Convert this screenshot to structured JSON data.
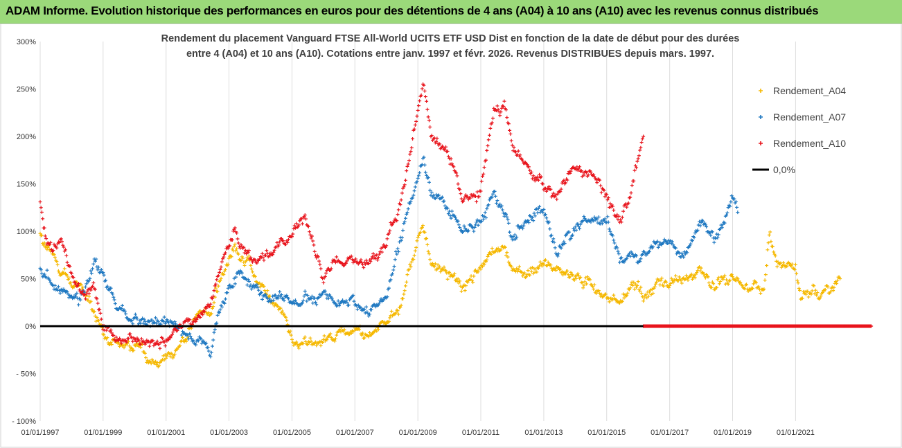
{
  "banner": {
    "title": "ADAM Informe. Evolution historique des performances en euros pour des détentions de 4 ans (A04) à 10 ans (A10) avec les revenus connus distribués",
    "background": "#9bd97a"
  },
  "chart_data": {
    "type": "scatter",
    "title_lines": [
      "Rendement du placement Vanguard FTSE All-World UCITS ETF USD Dist en fonction de la date de début pour des durées",
      "entre 4 (A04) et 10 ans (A10). Cotations entre janv. 1997 et févr.  2026. Revenus DISTRIBUES depuis mars. 1997."
    ],
    "x_axis": {
      "type": "date",
      "range": [
        "1997-01-01",
        "2023-06-01"
      ],
      "tick_labels": [
        "01/01/1997",
        "01/01/1999",
        "01/01/2001",
        "01/01/2003",
        "01/01/2005",
        "01/01/2007",
        "01/01/2009",
        "01/01/2011",
        "01/01/2013",
        "01/01/2015",
        "01/01/2017",
        "01/01/2019",
        "01/01/2021"
      ]
    },
    "y_axis": {
      "range": [
        -100,
        300
      ],
      "ticks": [
        -100,
        -50,
        0,
        50,
        100,
        150,
        200,
        250,
        300
      ],
      "tick_labels": [
        "- 100%",
        "- 50%",
        "0%",
        "50%",
        "100%",
        "150%",
        "200%",
        "250%",
        "300%"
      ]
    },
    "grid": "vertical lines only",
    "legend": {
      "placement": "right",
      "items": [
        {
          "label": "Rendement_A04",
          "marker": "+",
          "color": "#f5b800"
        },
        {
          "label": "Rendement_A07",
          "marker": "+",
          "color": "#1f78c1"
        },
        {
          "label": "Rendement_A10",
          "marker": "+",
          "color": "#e8141c"
        },
        {
          "label": "0,0%",
          "marker": "line",
          "color": "#000000"
        }
      ]
    },
    "series": [
      {
        "name": "Rendement_A04",
        "color": "#f5b800",
        "points": [
          [
            "1997-01-01",
            100
          ],
          [
            "1997-03-01",
            80
          ],
          [
            "1997-06-01",
            70
          ],
          [
            "1997-09-01",
            60
          ],
          [
            "1998-01-01",
            45
          ],
          [
            "1998-05-01",
            40
          ],
          [
            "1998-09-01",
            15
          ],
          [
            "1998-11-01",
            5
          ],
          [
            "1999-03-01",
            -20
          ],
          [
            "1999-09-01",
            -25
          ],
          [
            "2000-03-01",
            -25
          ],
          [
            "2000-09-01",
            -32
          ],
          [
            "2001-03-01",
            -28
          ],
          [
            "2001-09-01",
            -10
          ],
          [
            "2002-01-01",
            10
          ],
          [
            "2002-06-01",
            15
          ],
          [
            "2002-10-01",
            50
          ],
          [
            "2003-03-01",
            90
          ],
          [
            "2003-07-01",
            70
          ],
          [
            "2004-01-01",
            40
          ],
          [
            "2004-06-01",
            25
          ],
          [
            "2004-10-01",
            10
          ],
          [
            "2005-01-01",
            -15
          ],
          [
            "2005-06-01",
            -20
          ],
          [
            "2006-01-01",
            -15
          ],
          [
            "2006-06-01",
            -5
          ],
          [
            "2007-01-01",
            -10
          ],
          [
            "2007-06-01",
            -15
          ],
          [
            "2008-01-01",
            5
          ],
          [
            "2008-06-01",
            20
          ],
          [
            "2008-10-01",
            60
          ],
          [
            "2009-01-01",
            90
          ],
          [
            "2009-03-01",
            110
          ],
          [
            "2009-06-01",
            70
          ],
          [
            "2010-01-01",
            55
          ],
          [
            "2010-06-01",
            40
          ],
          [
            "2011-01-01",
            60
          ],
          [
            "2011-06-01",
            80
          ],
          [
            "2011-10-01",
            85
          ],
          [
            "2012-01-01",
            60
          ],
          [
            "2012-06-01",
            55
          ],
          [
            "2013-01-01",
            65
          ],
          [
            "2013-06-01",
            60
          ],
          [
            "2014-01-01",
            55
          ],
          [
            "2014-06-01",
            50
          ],
          [
            "2015-01-01",
            30
          ],
          [
            "2015-06-01",
            25
          ],
          [
            "2016-01-01",
            50
          ],
          [
            "2016-03-01",
            35
          ],
          [
            "2016-06-01",
            40
          ],
          [
            "2017-01-01",
            40
          ],
          [
            "2017-06-01",
            50
          ],
          [
            "2018-01-01",
            60
          ],
          [
            "2018-06-01",
            45
          ],
          [
            "2019-01-01",
            50
          ],
          [
            "2019-06-01",
            40
          ],
          [
            "2020-01-01",
            40
          ],
          [
            "2020-03-01",
            100
          ],
          [
            "2020-06-01",
            70
          ],
          [
            "2021-01-01",
            65
          ],
          [
            "2021-03-01",
            30
          ],
          [
            "2021-06-01",
            40
          ],
          [
            "2022-01-01",
            40
          ],
          [
            "2022-06-01",
            50
          ]
        ]
      },
      {
        "name": "Rendement_A07",
        "color": "#1f78c1",
        "points": [
          [
            "1997-01-01",
            55
          ],
          [
            "1997-06-01",
            40
          ],
          [
            "1998-01-01",
            30
          ],
          [
            "1998-06-01",
            35
          ],
          [
            "1998-10-01",
            70
          ],
          [
            "1999-01-01",
            50
          ],
          [
            "1999-06-01",
            20
          ],
          [
            "2000-01-01",
            5
          ],
          [
            "2000-06-01",
            0
          ],
          [
            "2001-01-01",
            5
          ],
          [
            "2001-06-01",
            0
          ],
          [
            "2002-01-01",
            -15
          ],
          [
            "2002-06-01",
            -30
          ],
          [
            "2002-09-01",
            10
          ],
          [
            "2003-01-01",
            40
          ],
          [
            "2003-06-01",
            60
          ],
          [
            "2004-01-01",
            40
          ],
          [
            "2004-06-01",
            30
          ],
          [
            "2005-01-01",
            25
          ],
          [
            "2005-06-01",
            30
          ],
          [
            "2006-01-01",
            35
          ],
          [
            "2006-06-01",
            20
          ],
          [
            "2007-01-01",
            20
          ],
          [
            "2007-06-01",
            15
          ],
          [
            "2008-01-01",
            35
          ],
          [
            "2008-06-01",
            80
          ],
          [
            "2008-10-01",
            130
          ],
          [
            "2009-01-01",
            160
          ],
          [
            "2009-03-01",
            180
          ],
          [
            "2009-06-01",
            140
          ],
          [
            "2010-01-01",
            120
          ],
          [
            "2010-06-01",
            100
          ],
          [
            "2011-01-01",
            110
          ],
          [
            "2011-06-01",
            145
          ],
          [
            "2011-10-01",
            120
          ],
          [
            "2012-01-01",
            100
          ],
          [
            "2012-06-01",
            115
          ],
          [
            "2013-01-01",
            120
          ],
          [
            "2013-06-01",
            80
          ],
          [
            "2014-01-01",
            100
          ],
          [
            "2014-06-01",
            120
          ],
          [
            "2015-01-01",
            110
          ],
          [
            "2015-06-01",
            80
          ],
          [
            "2016-01-01",
            70
          ],
          [
            "2016-06-01",
            90
          ],
          [
            "2017-01-01",
            85
          ],
          [
            "2017-06-01",
            80
          ],
          [
            "2018-01-01",
            110
          ],
          [
            "2018-06-01",
            90
          ],
          [
            "2018-10-01",
            110
          ],
          [
            "2019-01-01",
            140
          ],
          [
            "2019-03-01",
            120
          ]
        ]
      },
      {
        "name": "Rendement_A10",
        "color": "#e8141c",
        "points": [
          [
            "1997-01-01",
            130
          ],
          [
            "1997-03-01",
            90
          ],
          [
            "1997-06-01",
            80
          ],
          [
            "1997-09-01",
            90
          ],
          [
            "1998-01-01",
            50
          ],
          [
            "1998-06-01",
            30
          ],
          [
            "1998-10-01",
            40
          ],
          [
            "1999-01-01",
            0
          ],
          [
            "1999-06-01",
            -15
          ],
          [
            "2000-01-01",
            -10
          ],
          [
            "2000-06-01",
            -15
          ],
          [
            "2001-01-01",
            -15
          ],
          [
            "2001-06-01",
            0
          ],
          [
            "2002-01-01",
            10
          ],
          [
            "2002-06-01",
            20
          ],
          [
            "2002-10-01",
            70
          ],
          [
            "2003-03-01",
            100
          ],
          [
            "2003-07-01",
            80
          ],
          [
            "2004-01-01",
            70
          ],
          [
            "2004-06-01",
            80
          ],
          [
            "2005-01-01",
            100
          ],
          [
            "2005-06-01",
            120
          ],
          [
            "2006-01-01",
            50
          ],
          [
            "2006-06-01",
            70
          ],
          [
            "2007-01-01",
            70
          ],
          [
            "2007-06-01",
            60
          ],
          [
            "2008-01-01",
            90
          ],
          [
            "2008-06-01",
            130
          ],
          [
            "2008-10-01",
            180
          ],
          [
            "2009-01-01",
            230
          ],
          [
            "2009-03-01",
            250
          ],
          [
            "2009-06-01",
            200
          ],
          [
            "2010-01-01",
            180
          ],
          [
            "2010-06-01",
            130
          ],
          [
            "2011-01-01",
            150
          ],
          [
            "2011-06-01",
            230
          ],
          [
            "2011-10-01",
            240
          ],
          [
            "2012-01-01",
            190
          ],
          [
            "2012-06-01",
            170
          ],
          [
            "2013-01-01",
            150
          ],
          [
            "2013-06-01",
            140
          ],
          [
            "2014-01-01",
            170
          ],
          [
            "2014-06-01",
            160
          ],
          [
            "2015-01-01",
            140
          ],
          [
            "2015-06-01",
            110
          ],
          [
            "2015-10-01",
            140
          ],
          [
            "2016-01-01",
            180
          ],
          [
            "2016-03-01",
            200
          ]
        ]
      },
      {
        "name": "Rendement_A10 (0% plateau)",
        "color": "#e8141c",
        "range": [
          "2016-03-01",
          "2023-06-01"
        ],
        "value": 0
      }
    ],
    "reference_line": {
      "label": "0,0%",
      "y": 0,
      "color": "#000000"
    }
  }
}
